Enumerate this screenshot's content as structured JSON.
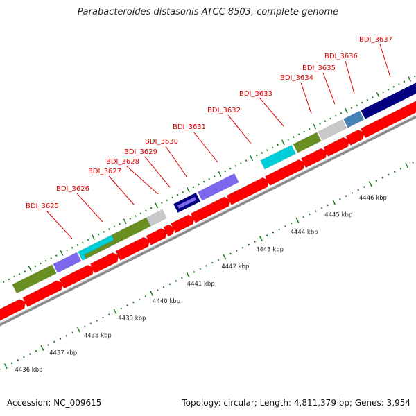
{
  "title": "Parabacteroides distasonis ATCC 8503, complete genome",
  "footer": {
    "accession": "Accession: NC_009615",
    "topology": "Topology: circular; Length: 4,811,379 bp; Genes: 3,954"
  },
  "colors": {
    "cds": "#ff0000",
    "backbone": "#888888",
    "label": "#e00000",
    "tick": "#1a7a1a",
    "olive": "#6b8e23",
    "slate": "#7b68ee",
    "cyan": "#00cdd8",
    "silver": "#c8c8c8",
    "navy": "#000080",
    "steel": "#4682b4"
  },
  "gene_labels": [
    "BDI_3625",
    "BDI_3626",
    "BDI_3627",
    "BDI_3628",
    "BDI_3629",
    "BDI_3630",
    "BDI_3631",
    "BDI_3632",
    "BDI_3633",
    "BDI_3634",
    "BDI_3635",
    "BDI_3636",
    "BDI_3637"
  ],
  "kbp_labels": [
    "4436 kbp",
    "4437 kbp",
    "4438 kbp",
    "4439 kbp",
    "4440 kbp",
    "4441 kbp",
    "4442 kbp",
    "4443 kbp",
    "4444 kbp",
    "4445 kbp",
    "4446 kbp"
  ]
}
